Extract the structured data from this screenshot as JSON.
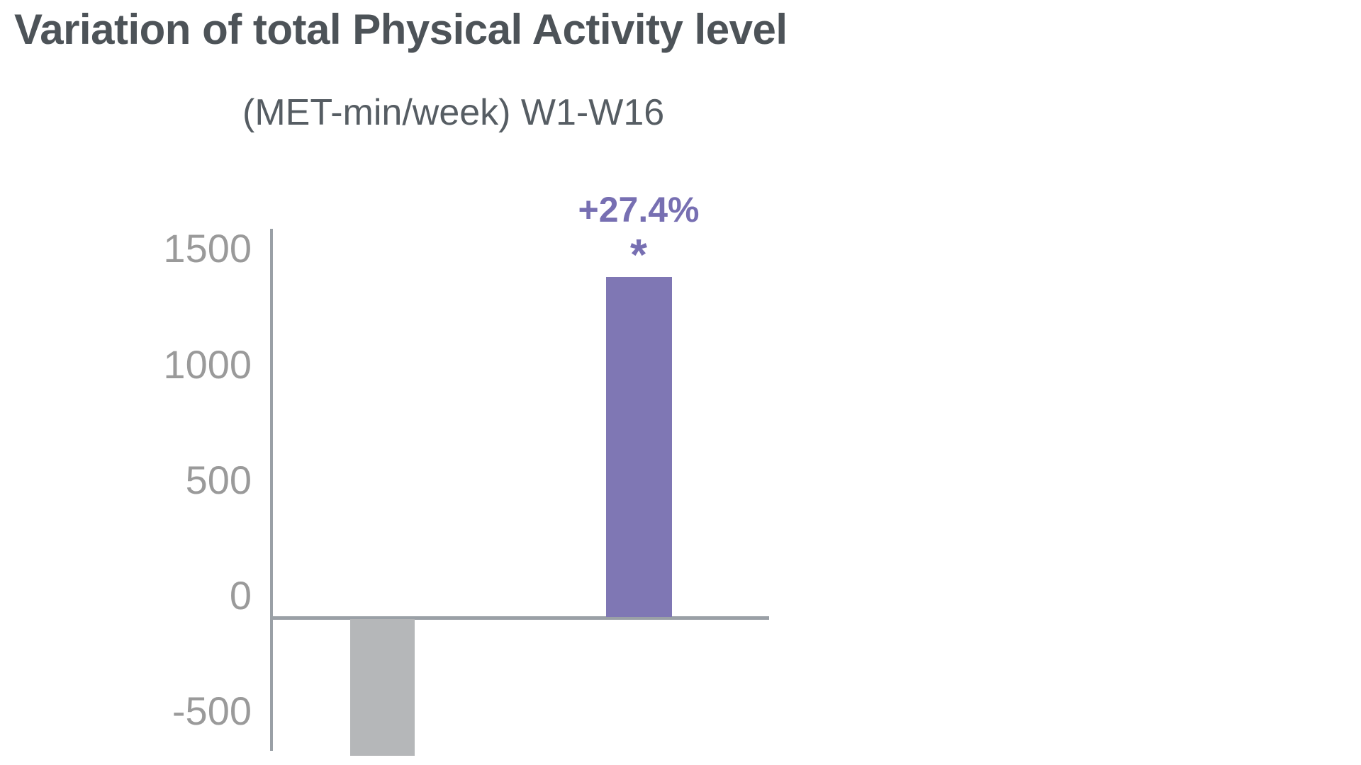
{
  "chart_data": {
    "type": "bar",
    "title": "Variation of total Physical Activity level",
    "subtitle": "(MET-min/week) W1-W16",
    "categories": [
      "",
      ""
    ],
    "bars": [
      {
        "label": "",
        "annotation": "",
        "value": -590,
        "color": "#b5b7b9"
      },
      {
        "label": "+27.4%",
        "annotation": "*",
        "value": 1470,
        "color": "#7f77b4"
      }
    ],
    "yticks": [
      1500,
      1000,
      500,
      0,
      -500
    ],
    "ylim": [
      -700,
      1600
    ],
    "xlabel": "",
    "ylabel": "",
    "grid": false,
    "legend": "none",
    "title_color": "#4d5358",
    "subtitle_color": "#565d63",
    "tick_label_color": "#9a9a9a",
    "axis_color": "#9aa0a6",
    "value_label_color": "#776fb2",
    "background_color": "#ffffff"
  }
}
